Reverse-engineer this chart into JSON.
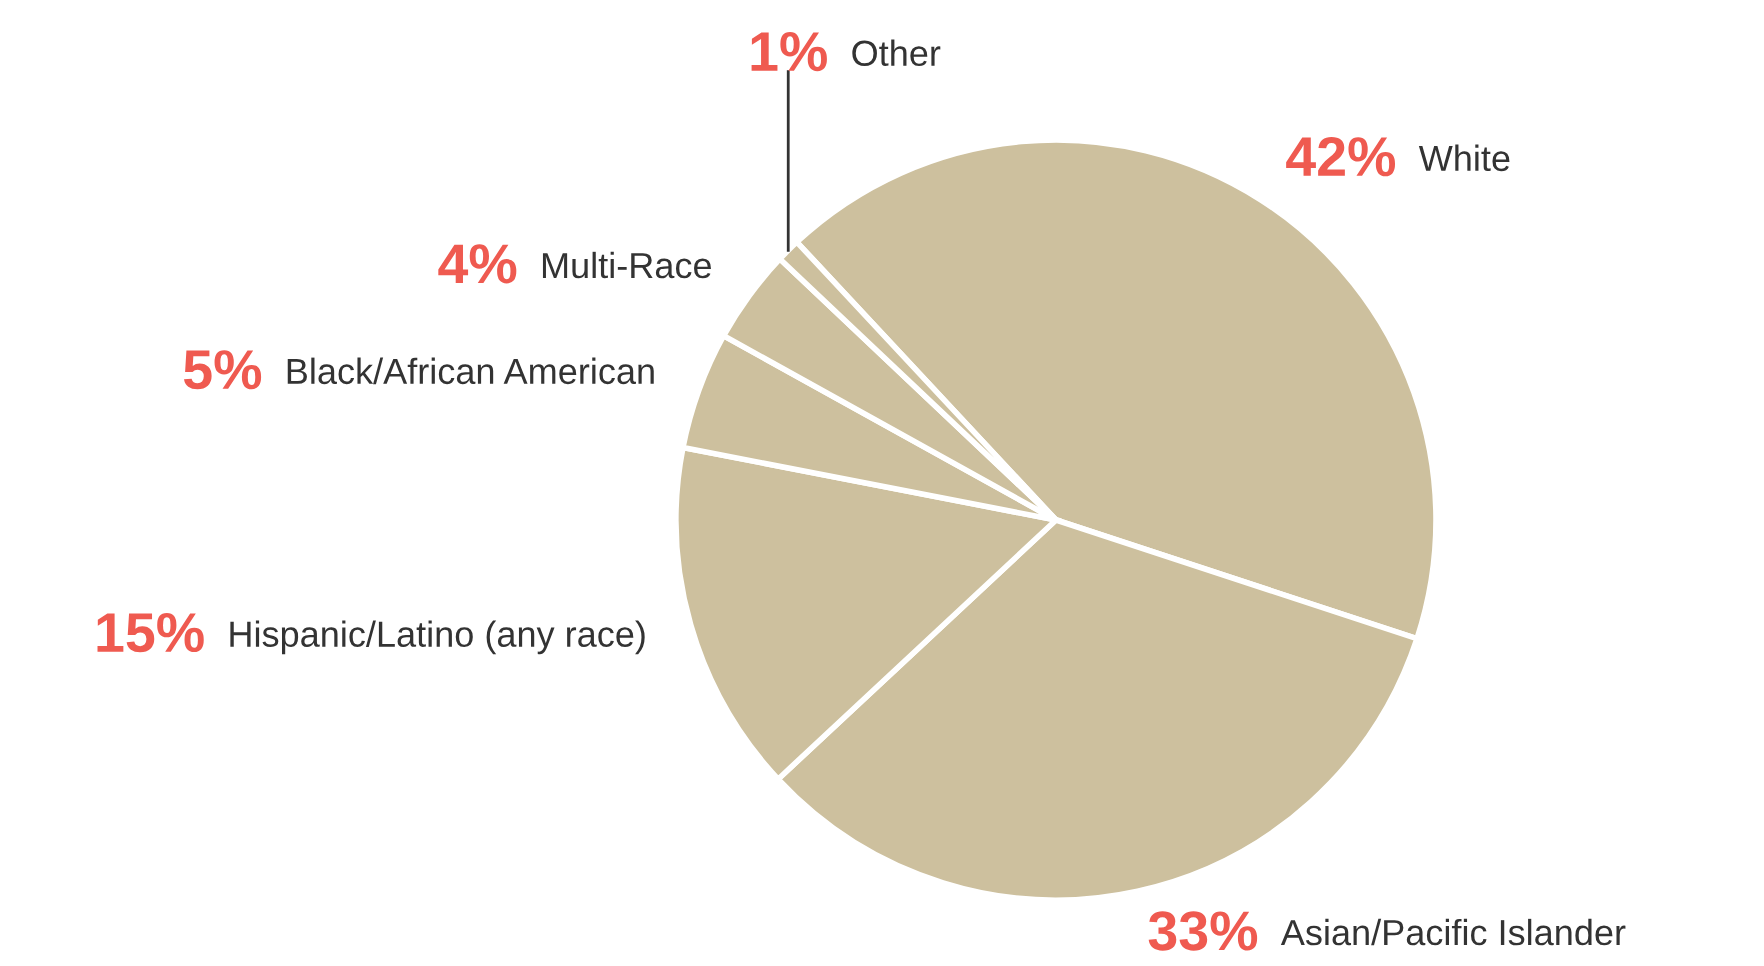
{
  "chart_data": {
    "type": "pie",
    "categories": [
      "White",
      "Asian/Pacific Islander",
      "Hispanic/Latino (any race)",
      "Black/African American",
      "Multi-Race",
      "Other"
    ],
    "values": [
      42,
      33,
      15,
      5,
      4,
      1
    ],
    "colors": [
      "#cdc09e",
      "#cdc09e",
      "#cdc09e",
      "#cdc09e",
      "#cdc09e",
      "#cdc09e"
    ],
    "value_labels": [
      "42%",
      "33%",
      "15%",
      "5%",
      "4%",
      "1%"
    ],
    "legend": false
  }
}
